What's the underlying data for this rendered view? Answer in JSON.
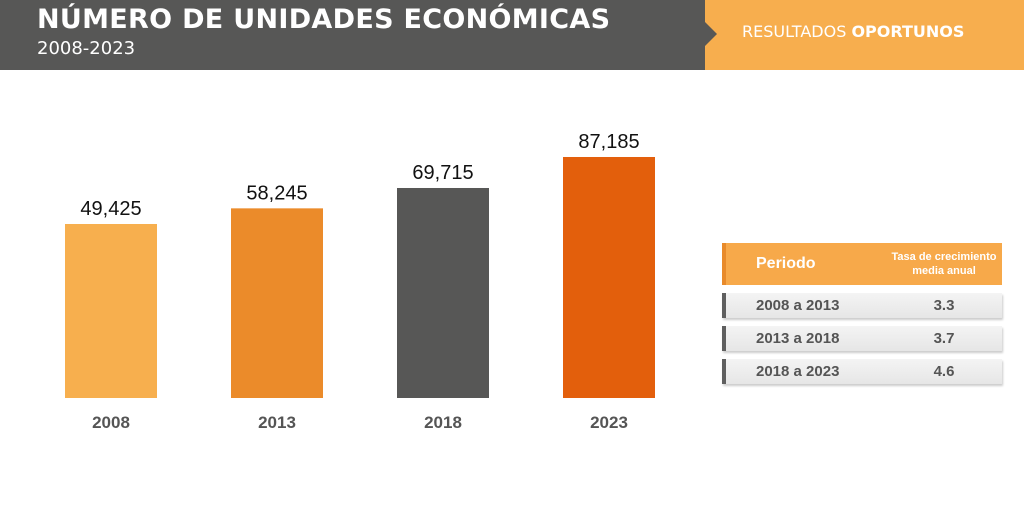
{
  "header": {
    "title": "NÚMERO DE UNIDADES ECONÓMICAS",
    "subtitle": "2008-2023",
    "brand_light": "RESULTADOS ",
    "brand_bold": "OPORTUNOS"
  },
  "chart_data": {
    "type": "bar",
    "title": "NÚMERO DE UNIDADES ECONÓMICAS",
    "categories": [
      "2008",
      "2013",
      "2018",
      "2023"
    ],
    "values": [
      49425,
      58245,
      69715,
      87185
    ],
    "labels": [
      "49,425",
      "58,245",
      "69,715",
      "87,185"
    ],
    "colors": [
      "#F7AF4E",
      "#EB8B2A",
      "#575756",
      "#E35F0C"
    ],
    "ylim": [
      -48640,
      90000
    ],
    "xlabel": "",
    "ylabel": "",
    "grid": false
  },
  "table": {
    "headers": [
      "Periodo",
      "Tasa de crecimiento media anual"
    ],
    "rows": [
      {
        "period": "2008 a 2013",
        "rate": "3.3"
      },
      {
        "period": "2013 a 2018",
        "rate": "3.7"
      },
      {
        "period": "2018 a 2023",
        "rate": "4.6"
      }
    ]
  }
}
